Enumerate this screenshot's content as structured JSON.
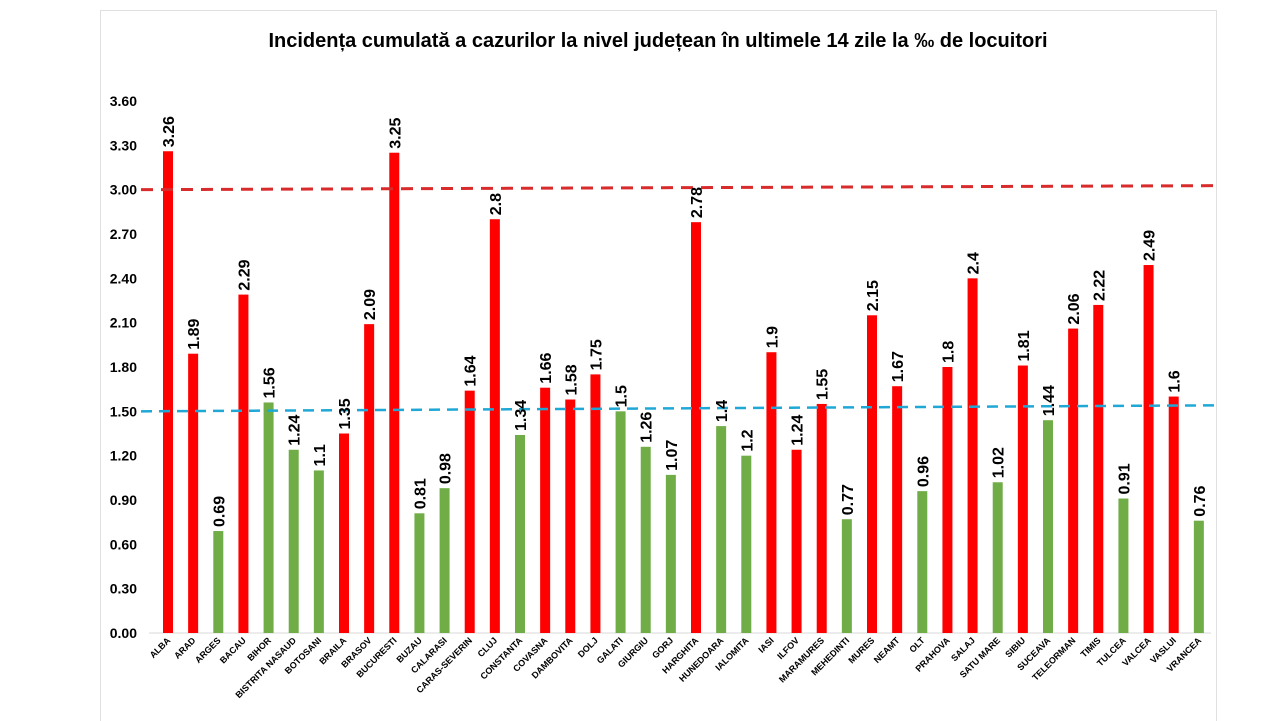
{
  "chart_data": {
    "type": "bar",
    "title": "Incidența cumulată a cazurilor la nivel județean în ultimele 14 zile la ‰ de locuitori",
    "xlabel": "",
    "ylabel": "",
    "ylim": [
      0,
      3.6
    ],
    "yticks": [
      "0.00",
      "0.30",
      "0.60",
      "0.90",
      "1.20",
      "1.50",
      "1.80",
      "2.10",
      "2.40",
      "2.70",
      "3.00",
      "3.30",
      "3.60"
    ],
    "categories": [
      "ALBA",
      "ARAD",
      "ARGES",
      "BACAU",
      "BIHOR",
      "BISTRITA NASAUD",
      "BOTOSANI",
      "BRAILA",
      "BRASOV",
      "BUCURESTI",
      "BUZAU",
      "CALARASI",
      "CARAS-SEVERIN",
      "CLUJ",
      "CONSTANTA",
      "COVASNA",
      "DAMBOVITA",
      "DOLJ",
      "GALATI",
      "GIURGIU",
      "GORJ",
      "HARGHITA",
      "HUNEDOARA",
      "IALOMITA",
      "IASI",
      "ILFOV",
      "MARAMURES",
      "MEHEDINTI",
      "MURES",
      "NEAMT",
      "OLT",
      "PRAHOVA",
      "SALAJ",
      "SATU MARE",
      "SIBIU",
      "SUCEAVA",
      "TELEORMAN",
      "TIMIS",
      "TULCEA",
      "VALCEA",
      "VASLUI",
      "VRANCEA"
    ],
    "values": [
      3.26,
      1.89,
      0.69,
      2.29,
      1.56,
      1.24,
      1.1,
      1.35,
      2.09,
      3.25,
      0.81,
      0.98,
      1.64,
      2.8,
      1.34,
      1.66,
      1.58,
      1.75,
      1.5,
      1.26,
      1.07,
      2.78,
      1.4,
      1.2,
      1.9,
      1.24,
      1.55,
      0.77,
      2.15,
      1.67,
      0.96,
      1.8,
      2.4,
      1.02,
      1.81,
      1.44,
      2.06,
      2.22,
      0.91,
      2.49,
      1.6,
      0.76
    ],
    "labels": [
      "3.26",
      "1.89",
      "0.69",
      "2.29",
      "1.56",
      "1.24",
      "1.1",
      "1.35",
      "2.09",
      "3.25",
      "0.81",
      "0.98",
      "1.64",
      "2.8",
      "1.34",
      "1.66",
      "1.58",
      "1.75",
      "1.5",
      "1.26",
      "1.07",
      "2.78",
      "1.4",
      "1.2",
      "1.9",
      "1.24",
      "1.55",
      "0.77",
      "2.15",
      "1.67",
      "0.96",
      "1.8",
      "2.4",
      "1.02",
      "1.81",
      "1.44",
      "2.06",
      "2.22",
      "0.91",
      "2.49",
      "1.6",
      "0.76"
    ],
    "bar_colors": [
      "red",
      "red",
      "green",
      "red",
      "green",
      "green",
      "green",
      "red",
      "red",
      "red",
      "green",
      "green",
      "red",
      "red",
      "green",
      "red",
      "red",
      "red",
      "green",
      "green",
      "green",
      "red",
      "green",
      "green",
      "red",
      "red",
      "red",
      "green",
      "red",
      "red",
      "green",
      "red",
      "red",
      "green",
      "red",
      "green",
      "red",
      "red",
      "green",
      "red",
      "red",
      "green"
    ],
    "colors": {
      "red": "#ff0000",
      "green": "#70ad47",
      "red_line": "#d92b2b",
      "blue_line": "#1fa8d6"
    },
    "reference_lines": [
      {
        "name": "red-threshold",
        "value": 3.0,
        "style": "dashed"
      },
      {
        "name": "blue-threshold",
        "value": 1.5,
        "style": "dashed"
      }
    ]
  }
}
